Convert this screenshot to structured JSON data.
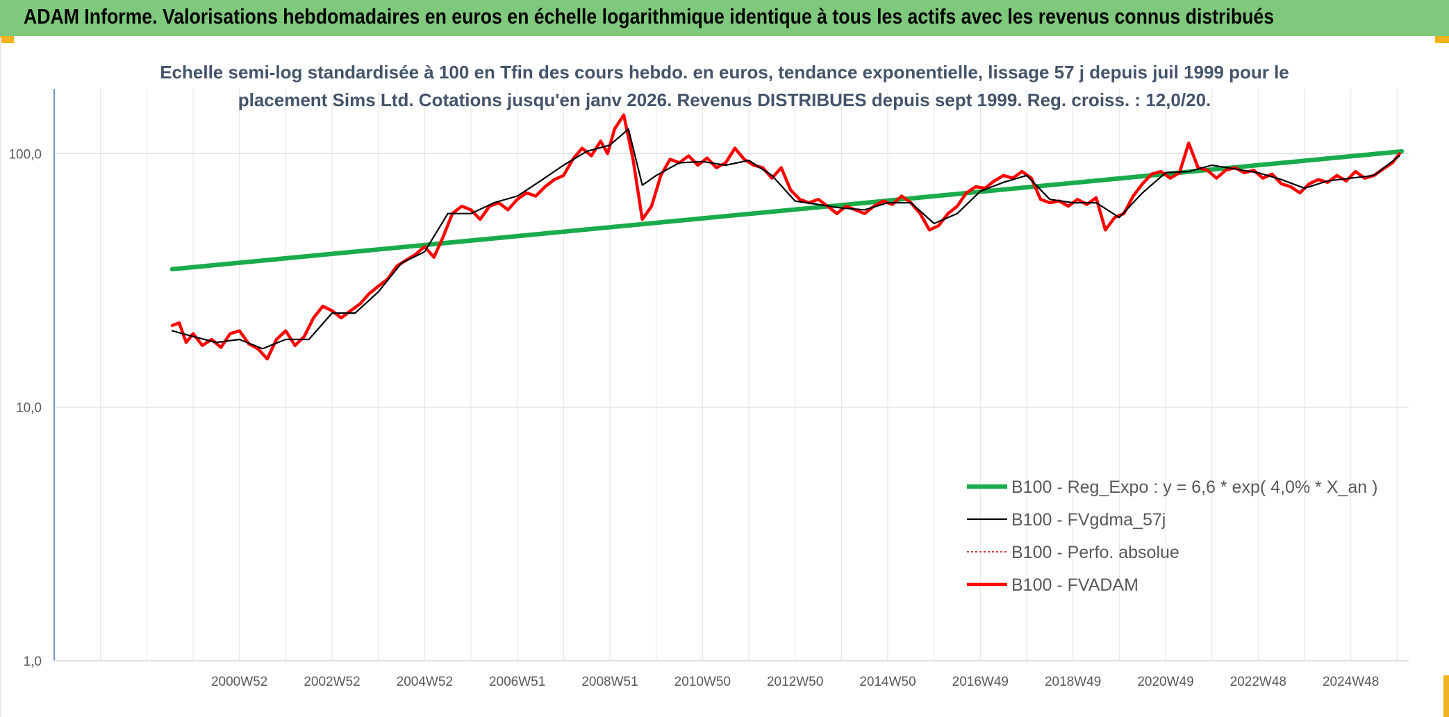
{
  "page": {
    "title": "ADAM Informe. Valorisations hebdomadaires en euros en échelle logarithmique identique à tous les actifs avec les revenus connus distribués"
  },
  "colors": {
    "banner": "#7fc97c",
    "regression": "#1aab4b",
    "smoothed": "#000000",
    "absolute": "#c00000",
    "fvadam": "#ff0000",
    "grid": "#d9d9d9",
    "axis": "#4472c4"
  },
  "chart_data": {
    "type": "line",
    "subtitle_line1": "Echelle semi-log standardisée à 100 en Tfin des cours hebdo. en euros, tendance exponentielle, lissage 57 j depuis juil 1999 pour le",
    "subtitle_line2": "placement Sims Ltd. Cotations jusqu'en janv 2026. Revenus DISTRIBUES depuis sept 1999. Reg. croiss. : 12,0/20.",
    "y_scale": "log",
    "ylim": [
      1,
      180
    ],
    "y_ticks": [
      {
        "value": 100,
        "label": "100,0"
      },
      {
        "value": 10,
        "label": "10,0"
      },
      {
        "value": 1,
        "label": "1,0"
      }
    ],
    "x_ticks": [
      "2000W52",
      "2002W52",
      "2004W52",
      "2006W51",
      "2008W51",
      "2010W50",
      "2012W50",
      "2014W50",
      "2016W49",
      "2018W49",
      "2020W49",
      "2022W48",
      "2024W48"
    ],
    "x_tick_years": [
      2001,
      2003,
      2005,
      2007,
      2009,
      2011,
      2013,
      2015,
      2017,
      2019,
      2021,
      2023,
      2025
    ],
    "xlim": [
      1997.0,
      2026.25
    ],
    "grid": true,
    "legend_position": "bottom-right",
    "legend": [
      {
        "key": "regression",
        "label": "B100 - Reg_Expo : y = 6,6 * exp( 4,0% *  X_an )"
      },
      {
        "key": "smoothed",
        "label": "B100 - FVgdma_57j"
      },
      {
        "key": "absolute",
        "label": "B100 - Perfo. absolue"
      },
      {
        "key": "fvadam",
        "label": "B100 - FVADAM"
      }
    ],
    "series": [
      {
        "key": "regression",
        "name": "B100 - Reg_Expo : y = 6,6 * exp( 4,0% *  X_an )",
        "x": [
          1999.55,
          2026.1
        ],
        "y": [
          35.0,
          102.0
        ]
      },
      {
        "key": "fvadam",
        "name": "B100 - FVADAM",
        "x": [
          1999.55,
          1999.7,
          1999.85,
          2000.0,
          2000.2,
          2000.4,
          2000.6,
          2000.8,
          2001.0,
          2001.2,
          2001.4,
          2001.6,
          2001.8,
          2002.0,
          2002.2,
          2002.4,
          2002.6,
          2002.8,
          2003.0,
          2003.2,
          2003.4,
          2003.6,
          2003.8,
          2004.0,
          2004.2,
          2004.4,
          2004.6,
          2004.8,
          2005.0,
          2005.2,
          2005.4,
          2005.6,
          2005.8,
          2006.0,
          2006.2,
          2006.4,
          2006.6,
          2006.8,
          2007.0,
          2007.2,
          2007.4,
          2007.6,
          2007.8,
          2008.0,
          2008.2,
          2008.4,
          2008.6,
          2008.8,
          2008.95,
          2009.1,
          2009.3,
          2009.5,
          2009.7,
          2009.9,
          2010.1,
          2010.3,
          2010.5,
          2010.7,
          2010.9,
          2011.1,
          2011.3,
          2011.5,
          2011.7,
          2011.9,
          2012.1,
          2012.3,
          2012.5,
          2012.7,
          2012.9,
          2013.1,
          2013.3,
          2013.5,
          2013.7,
          2013.9,
          2014.1,
          2014.3,
          2014.5,
          2014.7,
          2014.9,
          2015.1,
          2015.3,
          2015.5,
          2015.7,
          2015.9,
          2016.1,
          2016.3,
          2016.5,
          2016.7,
          2016.9,
          2017.1,
          2017.3,
          2017.5,
          2017.7,
          2017.9,
          2018.1,
          2018.3,
          2018.5,
          2018.7,
          2018.9,
          2019.1,
          2019.3,
          2019.5,
          2019.7,
          2019.9,
          2020.1,
          2020.3,
          2020.5,
          2020.7,
          2020.9,
          2021.1,
          2021.3,
          2021.5,
          2021.7,
          2021.9,
          2022.1,
          2022.3,
          2022.5,
          2022.7,
          2022.9,
          2023.1,
          2023.3,
          2023.5,
          2023.7,
          2023.9,
          2024.1,
          2024.3,
          2024.5,
          2024.7,
          2024.9,
          2025.1,
          2025.3,
          2025.5,
          2025.7,
          2025.9,
          2026.05
        ],
        "y": [
          21.0,
          21.5,
          18.0,
          19.5,
          17.5,
          18.5,
          17.2,
          19.5,
          20.0,
          17.8,
          17.0,
          15.5,
          18.5,
          20.0,
          17.5,
          19.0,
          22.5,
          25.0,
          24.0,
          22.5,
          24.0,
          25.5,
          28.0,
          30.0,
          32.0,
          36.0,
          38.0,
          40.0,
          43.0,
          39.0,
          47.0,
          58.0,
          62.0,
          60.0,
          55.0,
          62.0,
          64.0,
          60.0,
          66.0,
          70.0,
          68.0,
          74.0,
          79.0,
          82.0,
          95.0,
          105.0,
          98.0,
          112.0,
          100.0,
          125.0,
          142.0,
          95.0,
          55.0,
          62.0,
          82.0,
          95.0,
          92.0,
          98.0,
          90.0,
          96.0,
          88.0,
          92.0,
          105.0,
          95.0,
          90.0,
          88.0,
          80.0,
          88.0,
          72.0,
          66.0,
          64.0,
          66.0,
          62.0,
          58.0,
          62.0,
          60.0,
          58.0,
          62.0,
          65.0,
          63.0,
          68.0,
          64.0,
          58.0,
          50.0,
          52.0,
          58.0,
          62.0,
          70.0,
          74.0,
          73.0,
          78.0,
          82.0,
          80.0,
          85.0,
          80.0,
          66.0,
          64.0,
          65.0,
          62.0,
          66.0,
          63.0,
          67.0,
          50.0,
          56.0,
          58.0,
          68.0,
          76.0,
          83.0,
          85.0,
          80.0,
          84.0,
          110.0,
          88.0,
          86.0,
          80.0,
          86.0,
          88.0,
          84.0,
          86.0,
          80.0,
          83.0,
          76.0,
          74.0,
          70.0,
          76.0,
          79.0,
          77.0,
          82.0,
          78.0,
          85.0,
          80.0,
          82.0,
          87.0,
          92.0,
          100.0
        ]
      },
      {
        "key": "smoothed",
        "name": "B100 - FVgdma_57j",
        "x": [
          1999.55,
          2000.0,
          2000.5,
          2001.0,
          2001.5,
          2002.0,
          2002.5,
          2003.0,
          2003.5,
          2004.0,
          2004.5,
          2005.0,
          2005.5,
          2006.0,
          2006.5,
          2007.0,
          2007.5,
          2008.0,
          2008.5,
          2009.0,
          2009.4,
          2009.7,
          2010.0,
          2010.5,
          2011.0,
          2011.5,
          2012.0,
          2012.5,
          2013.0,
          2013.5,
          2014.0,
          2014.5,
          2015.0,
          2015.5,
          2016.0,
          2016.5,
          2017.0,
          2017.5,
          2018.0,
          2018.5,
          2019.0,
          2019.5,
          2020.0,
          2020.5,
          2021.0,
          2021.5,
          2022.0,
          2022.5,
          2023.0,
          2023.5,
          2024.0,
          2024.5,
          2025.0,
          2025.5,
          2026.05
        ],
        "y": [
          20.0,
          19.0,
          18.0,
          18.5,
          17.0,
          18.5,
          18.5,
          23.5,
          23.5,
          28.5,
          37.0,
          41.0,
          58.0,
          58.0,
          64.0,
          68.0,
          78.0,
          90.0,
          102.0,
          108.0,
          125.0,
          75.0,
          82.0,
          92.0,
          93.0,
          90.0,
          94.0,
          82.0,
          65.0,
          63.0,
          61.0,
          60.0,
          64.0,
          64.0,
          53.0,
          58.0,
          71.0,
          77.0,
          82.0,
          66.0,
          64.0,
          64.0,
          56.0,
          70.0,
          84.0,
          85.0,
          90.0,
          87.0,
          84.0,
          79.0,
          73.0,
          78.0,
          80.0,
          82.0,
          98.0
        ]
      }
    ]
  }
}
